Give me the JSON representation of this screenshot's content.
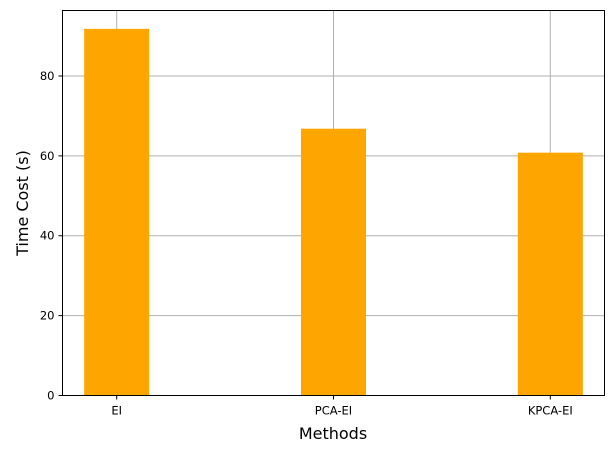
{
  "chart_data": {
    "type": "bar",
    "title": "",
    "xlabel": "Methods",
    "ylabel": "Time Cost (s)",
    "categories": [
      "EI",
      "PCA-EI",
      "KPCA-EI"
    ],
    "values": [
      91.8,
      66.8,
      60.8
    ],
    "ylim": [
      0,
      96.4
    ],
    "yticks": [
      0,
      20,
      40,
      60,
      80
    ],
    "xlim": [
      -0.25,
      2.25
    ],
    "grid": true,
    "bar_color": "#ffa500"
  }
}
